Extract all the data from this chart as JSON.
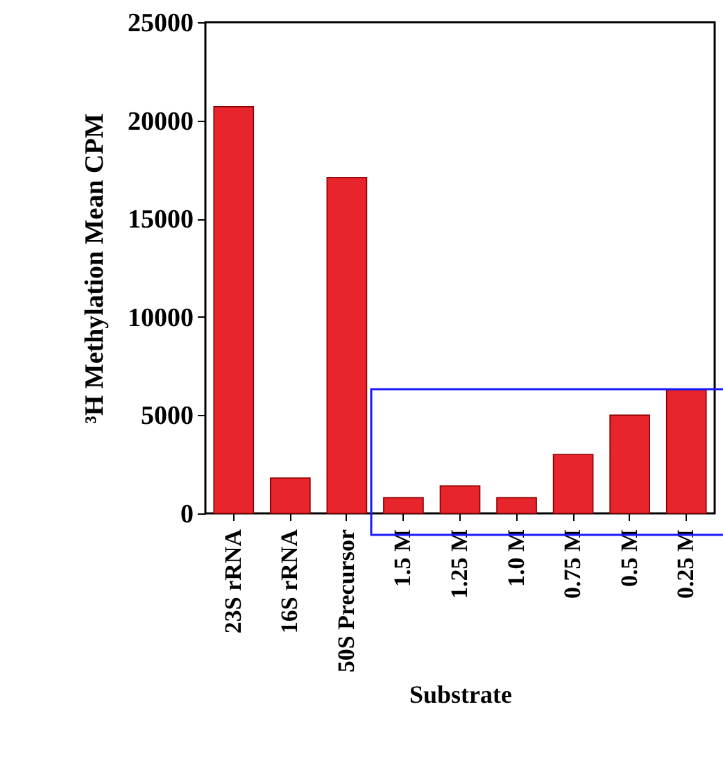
{
  "chart_data": {
    "type": "bar",
    "xlabel": "Substrate",
    "ylabel": "³H Methylation Mean CPM",
    "categories": [
      "23S rRNA",
      "16S rRNA",
      "50S Precursor",
      "1.5 M",
      "1.25 M",
      "1.0 M",
      "0.75 M",
      "0.5 M",
      "0.25 M"
    ],
    "values": [
      20700,
      1800,
      17100,
      800,
      1400,
      800,
      3000,
      5000,
      6300
    ],
    "color": "#e8242c",
    "ylim": [
      0,
      25000
    ],
    "yticks": [
      0,
      5000,
      10000,
      15000,
      20000,
      25000
    ],
    "grid": false
  }
}
